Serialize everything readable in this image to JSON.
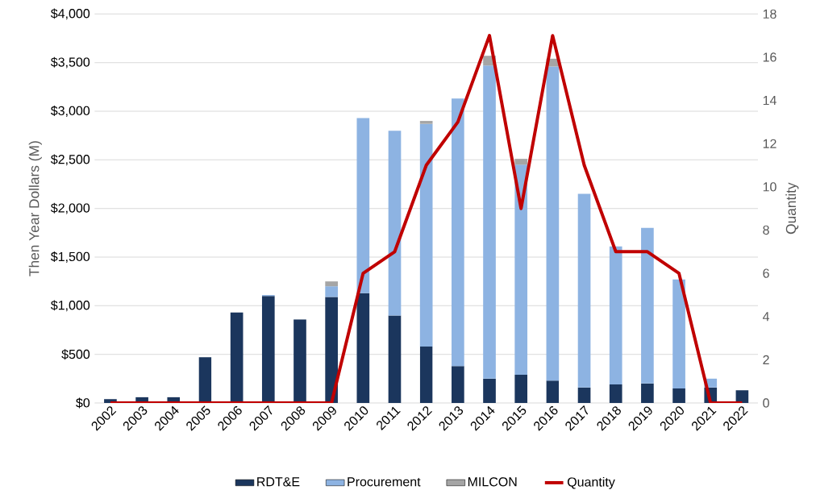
{
  "chart_data": {
    "type": "bar",
    "stacked": true,
    "categories": [
      "2002",
      "2003",
      "2004",
      "2005",
      "2006",
      "2007",
      "2008",
      "2009",
      "2010",
      "2011",
      "2012",
      "2013",
      "2014",
      "2015",
      "2016",
      "2017",
      "2018",
      "2019",
      "2020",
      "2021",
      "2022"
    ],
    "series": [
      {
        "name": "RDT&E",
        "color": "#1b365d",
        "values": [
          40,
          60,
          60,
          470,
          930,
          1100,
          860,
          1090,
          1130,
          900,
          580,
          380,
          250,
          290,
          230,
          160,
          190,
          200,
          150,
          160,
          130
        ]
      },
      {
        "name": "Procurement",
        "color": "#8db3e2",
        "values": [
          null,
          null,
          null,
          null,
          null,
          10,
          null,
          110,
          1800,
          1900,
          2290,
          2750,
          3220,
          2160,
          3230,
          1990,
          1420,
          1600,
          1120,
          90,
          null
        ]
      },
      {
        "name": "MILCON",
        "color": "#a5a5a5",
        "values": [
          null,
          null,
          null,
          null,
          null,
          null,
          null,
          50,
          null,
          null,
          30,
          null,
          100,
          60,
          80,
          null,
          null,
          null,
          null,
          null,
          null
        ]
      },
      {
        "name": "Quantity",
        "type": "line",
        "axis": "y2",
        "color": "#c00000",
        "values": [
          0,
          0,
          0,
          0,
          0,
          0,
          0,
          0,
          6,
          7,
          11,
          13,
          17,
          9,
          17,
          11,
          7,
          7,
          6,
          0,
          0
        ]
      }
    ],
    "ylabel": "Then Year Dollars (M)",
    "y2label": "Quantity",
    "ylim": [
      0,
      4000
    ],
    "yticks": [
      {
        "value": 0,
        "label": "$0"
      },
      {
        "value": 500,
        "label": "$500"
      },
      {
        "value": 1000,
        "label": "$1,000"
      },
      {
        "value": 1500,
        "label": "$1,500"
      },
      {
        "value": 2000,
        "label": "$2,000"
      },
      {
        "value": 2500,
        "label": "$2,500"
      },
      {
        "value": 3000,
        "label": "$3,000"
      },
      {
        "value": 3500,
        "label": "$3,500"
      },
      {
        "value": 4000,
        "label": "$4,000"
      }
    ],
    "y2lim": [
      0,
      18
    ],
    "y2ticks": [
      0,
      2,
      4,
      6,
      8,
      10,
      12,
      14,
      16,
      18
    ],
    "grid": "y",
    "legend": "bottom"
  }
}
